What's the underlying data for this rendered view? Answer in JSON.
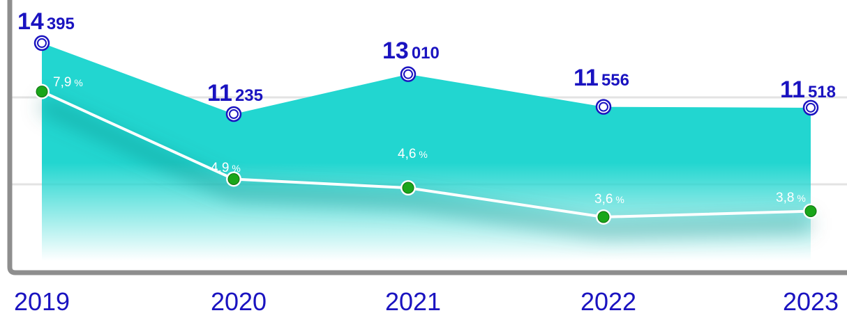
{
  "chart_data": {
    "type": "area",
    "categories": [
      "2019",
      "2020",
      "2021",
      "2022",
      "2023"
    ],
    "series": [
      {
        "values": [
          14395,
          11235,
          13010,
          11556,
          11518
        ],
        "labels": [
          {
            "big": "14",
            "small": "395"
          },
          {
            "big": "11",
            "small": "235"
          },
          {
            "big": "13",
            "small": "010"
          },
          {
            "big": "11",
            "small": "556"
          },
          {
            "big": "11",
            "small": "518"
          }
        ]
      },
      {
        "values": [
          7.9,
          4.9,
          4.6,
          3.6,
          3.8
        ],
        "labels": [
          {
            "num": "7,9",
            "unit": "%"
          },
          {
            "num": "4,9",
            "unit": "%"
          },
          {
            "num": "4,6",
            "unit": "%"
          },
          {
            "num": "3,6",
            "unit": "%"
          },
          {
            "num": "3,8",
            "unit": "%"
          }
        ]
      }
    ],
    "grid": true,
    "colors": {
      "area": "#22d6d0",
      "value_text": "#1a13c0",
      "marker_ring": "#1a13c0",
      "point_fill": "#1aa61a",
      "line": "#ffffff",
      "axis": "#8a8a8a",
      "grid": "#e0e0e0",
      "year_text": "#1a13c0"
    }
  }
}
